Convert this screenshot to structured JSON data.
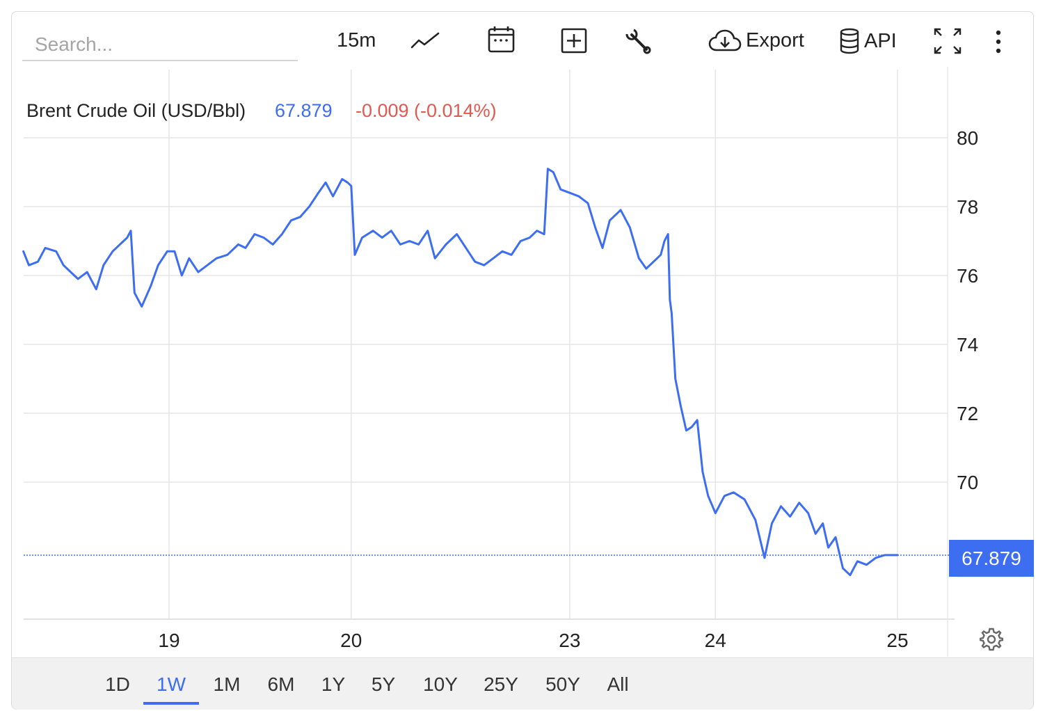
{
  "toolbar": {
    "search_placeholder": "Search...",
    "interval": "15m",
    "export_label": "Export",
    "api_label": "API"
  },
  "header": {
    "series_name": "Brent Crude Oil (USD/Bbl)",
    "last_value": "67.879",
    "change": "-0.009 (-0.014%)"
  },
  "price_tag": "67.879",
  "range_buttons": [
    "1D",
    "1W",
    "1M",
    "6M",
    "1Y",
    "5Y",
    "10Y",
    "25Y",
    "50Y",
    "All"
  ],
  "active_range": "1W",
  "colors": {
    "line": "#3d6df0",
    "negative": "#e05a50",
    "grid": "#e6e6e6"
  },
  "icons": [
    "line-chart-icon",
    "calendar-icon",
    "add-box-icon",
    "wrench-icon",
    "cloud-download-icon",
    "database-icon",
    "fullscreen-icon",
    "more-vertical-icon",
    "gear-icon"
  ],
  "chart_data": {
    "type": "line",
    "title": "",
    "xlabel": "",
    "ylabel": "",
    "ylim": [
      66,
      81.2
    ],
    "yticks": [
      70,
      72,
      74,
      76,
      78,
      80
    ],
    "xticks": [
      {
        "label": "19",
        "x": 2.0
      },
      {
        "label": "20",
        "x": 3.0
      },
      {
        "label": "23",
        "x": 4.2
      },
      {
        "label": "24",
        "x": 5.0
      },
      {
        "label": "25",
        "x": 6.0
      }
    ],
    "xlim": [
      1.2,
      6.27
    ],
    "reference_line": 67.879,
    "grid": true,
    "series": [
      {
        "values": [
          [
            1.2,
            76.7
          ],
          [
            1.23,
            76.3
          ],
          [
            1.28,
            76.4
          ],
          [
            1.32,
            76.8
          ],
          [
            1.38,
            76.7
          ],
          [
            1.42,
            76.3
          ],
          [
            1.46,
            76.1
          ],
          [
            1.5,
            75.9
          ],
          [
            1.55,
            76.1
          ],
          [
            1.6,
            75.6
          ],
          [
            1.64,
            76.3
          ],
          [
            1.69,
            76.7
          ],
          [
            1.73,
            76.9
          ],
          [
            1.77,
            77.1
          ],
          [
            1.79,
            77.3
          ],
          [
            1.81,
            75.5
          ],
          [
            1.85,
            75.1
          ],
          [
            1.9,
            75.7
          ],
          [
            1.94,
            76.3
          ],
          [
            1.99,
            76.7
          ],
          [
            2.03,
            76.7
          ],
          [
            2.07,
            76.0
          ],
          [
            2.11,
            76.5
          ],
          [
            2.16,
            76.1
          ],
          [
            2.21,
            76.3
          ],
          [
            2.26,
            76.5
          ],
          [
            2.32,
            76.6
          ],
          [
            2.38,
            76.9
          ],
          [
            2.42,
            76.8
          ],
          [
            2.47,
            77.2
          ],
          [
            2.52,
            77.1
          ],
          [
            2.57,
            76.9
          ],
          [
            2.62,
            77.2
          ],
          [
            2.67,
            77.6
          ],
          [
            2.72,
            77.7
          ],
          [
            2.77,
            78.0
          ],
          [
            2.82,
            78.4
          ],
          [
            2.86,
            78.7
          ],
          [
            2.9,
            78.3
          ],
          [
            2.95,
            78.8
          ],
          [
            2.98,
            78.7
          ],
          [
            3.0,
            78.6
          ],
          [
            3.02,
            76.6
          ],
          [
            3.06,
            77.1
          ],
          [
            3.12,
            77.3
          ],
          [
            3.17,
            77.1
          ],
          [
            3.22,
            77.3
          ],
          [
            3.27,
            76.9
          ],
          [
            3.32,
            77.0
          ],
          [
            3.37,
            76.9
          ],
          [
            3.42,
            77.3
          ],
          [
            3.46,
            76.5
          ],
          [
            3.52,
            76.9
          ],
          [
            3.58,
            77.2
          ],
          [
            3.63,
            76.8
          ],
          [
            3.68,
            76.4
          ],
          [
            3.73,
            76.3
          ],
          [
            3.78,
            76.5
          ],
          [
            3.83,
            76.7
          ],
          [
            3.88,
            76.6
          ],
          [
            3.93,
            77.0
          ],
          [
            3.98,
            77.1
          ],
          [
            4.02,
            77.3
          ],
          [
            4.06,
            77.2
          ],
          [
            4.08,
            79.1
          ],
          [
            4.11,
            79.0
          ],
          [
            4.15,
            78.5
          ],
          [
            4.2,
            78.4
          ],
          [
            4.25,
            78.3
          ],
          [
            4.3,
            78.1
          ],
          [
            4.34,
            77.4
          ],
          [
            4.38,
            76.8
          ],
          [
            4.42,
            77.6
          ],
          [
            4.48,
            77.9
          ],
          [
            4.53,
            77.4
          ],
          [
            4.58,
            76.5
          ],
          [
            4.62,
            76.2
          ],
          [
            4.66,
            76.4
          ],
          [
            4.7,
            76.6
          ],
          [
            4.72,
            77.0
          ],
          [
            4.74,
            77.2
          ],
          [
            4.75,
            75.3
          ],
          [
            4.76,
            74.9
          ],
          [
            4.78,
            73.0
          ],
          [
            4.81,
            72.2
          ],
          [
            4.84,
            71.5
          ],
          [
            4.87,
            71.6
          ],
          [
            4.9,
            71.8
          ],
          [
            4.93,
            70.3
          ],
          [
            4.96,
            69.6
          ],
          [
            5.0,
            69.1
          ],
          [
            5.05,
            69.6
          ],
          [
            5.1,
            69.7
          ],
          [
            5.16,
            69.5
          ],
          [
            5.22,
            68.9
          ],
          [
            5.27,
            67.8
          ],
          [
            5.31,
            68.8
          ],
          [
            5.36,
            69.3
          ],
          [
            5.41,
            69.0
          ],
          [
            5.46,
            69.4
          ],
          [
            5.51,
            69.1
          ],
          [
            5.55,
            68.5
          ],
          [
            5.59,
            68.8
          ],
          [
            5.62,
            68.1
          ],
          [
            5.66,
            68.4
          ],
          [
            5.7,
            67.5
          ],
          [
            5.74,
            67.3
          ],
          [
            5.78,
            67.7
          ],
          [
            5.83,
            67.6
          ],
          [
            5.88,
            67.8
          ],
          [
            5.93,
            67.88
          ],
          [
            5.97,
            67.88
          ],
          [
            6.0,
            67.88
          ]
        ]
      }
    ]
  }
}
